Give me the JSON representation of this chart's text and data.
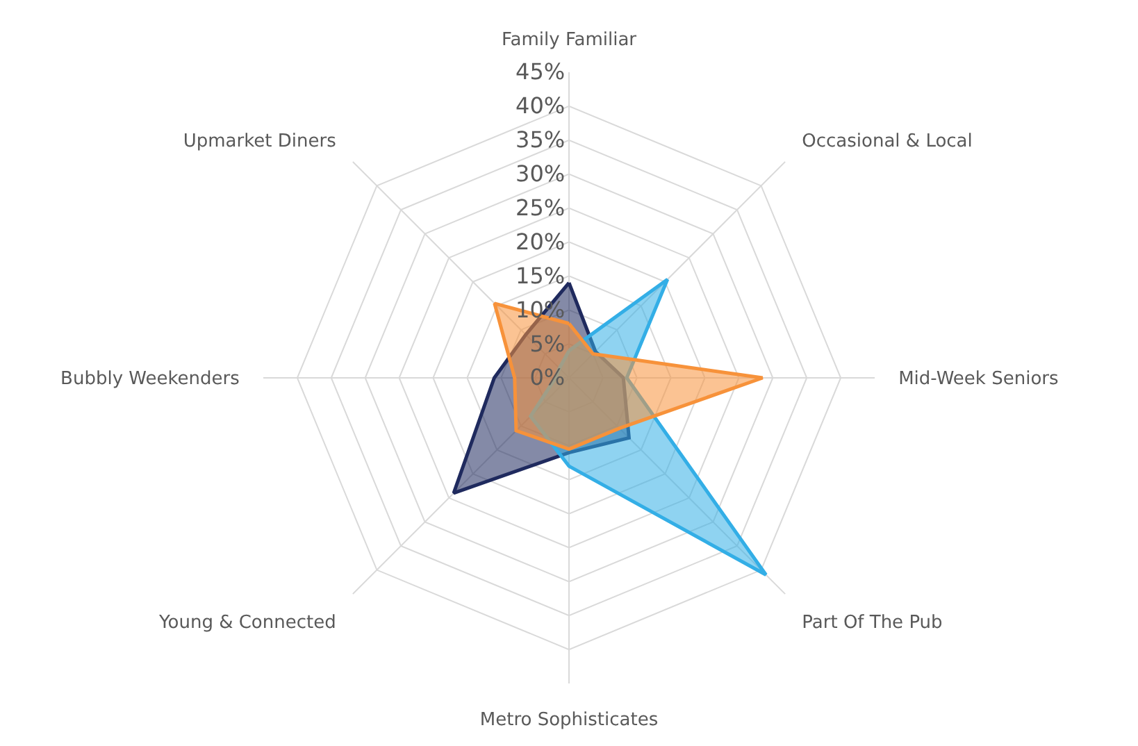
{
  "chart_data": {
    "type": "radar",
    "categories": [
      "Family Familiar",
      "Occasional & Local",
      "Mid-Week Seniors",
      "Part Of The Pub",
      "Metro Sophisticates",
      "Young & Connected",
      "Bubbly Weekenders",
      "Upmarket Diners"
    ],
    "series": [
      {
        "color": "#1f2a5e",
        "values": [
          14,
          5.5,
          8,
          12.5,
          11,
          24,
          11,
          9
        ]
      },
      {
        "color": "#33aee6",
        "values": [
          4,
          20.5,
          8.5,
          41,
          13,
          8,
          2,
          2
        ]
      },
      {
        "color": "#f7923a",
        "values": [
          8,
          5,
          28.5,
          10.5,
          10.5,
          11,
          8,
          15.5
        ]
      }
    ],
    "ylim": [
      0,
      45
    ],
    "yticks": [
      {
        "value": 0,
        "label": "0%"
      },
      {
        "value": 5,
        "label": "5%"
      },
      {
        "value": 10,
        "label": "10%"
      },
      {
        "value": 15,
        "label": "15%"
      },
      {
        "value": 20,
        "label": "20%"
      },
      {
        "value": 25,
        "label": "25%"
      },
      {
        "value": 30,
        "label": "30%"
      },
      {
        "value": 35,
        "label": "35%"
      },
      {
        "value": 40,
        "label": "40%"
      },
      {
        "value": 45,
        "label": "45%"
      }
    ],
    "grid": true,
    "marker": "none"
  }
}
